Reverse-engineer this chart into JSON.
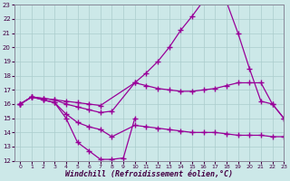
{
  "background_color": "#cce8e8",
  "grid_color": "#aacccc",
  "line_color": "#990099",
  "xlabel": "Windchill (Refroidissement éolien,°C)",
  "ylim": [
    12,
    23
  ],
  "xlim": [
    -0.5,
    23
  ],
  "yticks": [
    12,
    13,
    14,
    15,
    16,
    17,
    18,
    19,
    20,
    21,
    22,
    23
  ],
  "xticks": [
    0,
    1,
    2,
    3,
    4,
    5,
    6,
    7,
    8,
    9,
    10,
    11,
    12,
    13,
    14,
    15,
    16,
    17,
    18,
    19,
    20,
    21,
    22,
    23
  ],
  "line1_x": [
    0,
    1,
    2,
    3,
    4,
    5,
    6,
    7,
    8,
    9,
    10
  ],
  "line1_y": [
    16.0,
    16.5,
    16.3,
    16.1,
    15.0,
    13.3,
    12.7,
    12.1,
    12.1,
    12.2,
    15.0
  ],
  "line2_x": [
    0,
    1,
    2,
    3,
    4,
    5,
    6,
    7,
    8,
    10,
    11,
    12,
    13,
    14,
    15,
    16,
    17,
    18,
    19,
    20,
    21,
    22,
    23
  ],
  "line2_y": [
    16.0,
    16.5,
    16.3,
    16.1,
    15.3,
    14.7,
    14.4,
    14.2,
    13.7,
    14.5,
    14.4,
    14.3,
    14.2,
    14.1,
    14.0,
    14.0,
    14.0,
    13.9,
    13.8,
    13.8,
    13.8,
    13.7,
    13.7
  ],
  "line3_x": [
    0,
    1,
    2,
    3,
    4,
    5,
    6,
    7,
    8,
    10,
    11,
    12,
    13,
    14,
    15,
    16,
    17,
    18,
    19,
    20,
    21,
    22,
    23
  ],
  "line3_y": [
    16.0,
    16.5,
    16.4,
    16.3,
    16.0,
    15.8,
    15.6,
    15.4,
    15.5,
    17.5,
    17.3,
    17.1,
    17.0,
    16.9,
    16.9,
    17.0,
    17.1,
    17.3,
    17.5,
    17.5,
    17.5,
    16.0,
    15.0
  ],
  "line4_x": [
    0,
    1,
    2,
    3,
    4,
    5,
    6,
    7,
    10,
    11,
    12,
    13,
    14,
    15,
    16,
    17,
    18,
    19,
    20,
    21,
    22,
    23
  ],
  "line4_y": [
    16.0,
    16.5,
    16.4,
    16.3,
    16.2,
    16.1,
    16.0,
    15.9,
    17.5,
    18.2,
    19.0,
    20.0,
    21.2,
    22.2,
    23.3,
    23.3,
    23.2,
    21.0,
    18.5,
    16.2,
    16.0,
    15.0
  ]
}
